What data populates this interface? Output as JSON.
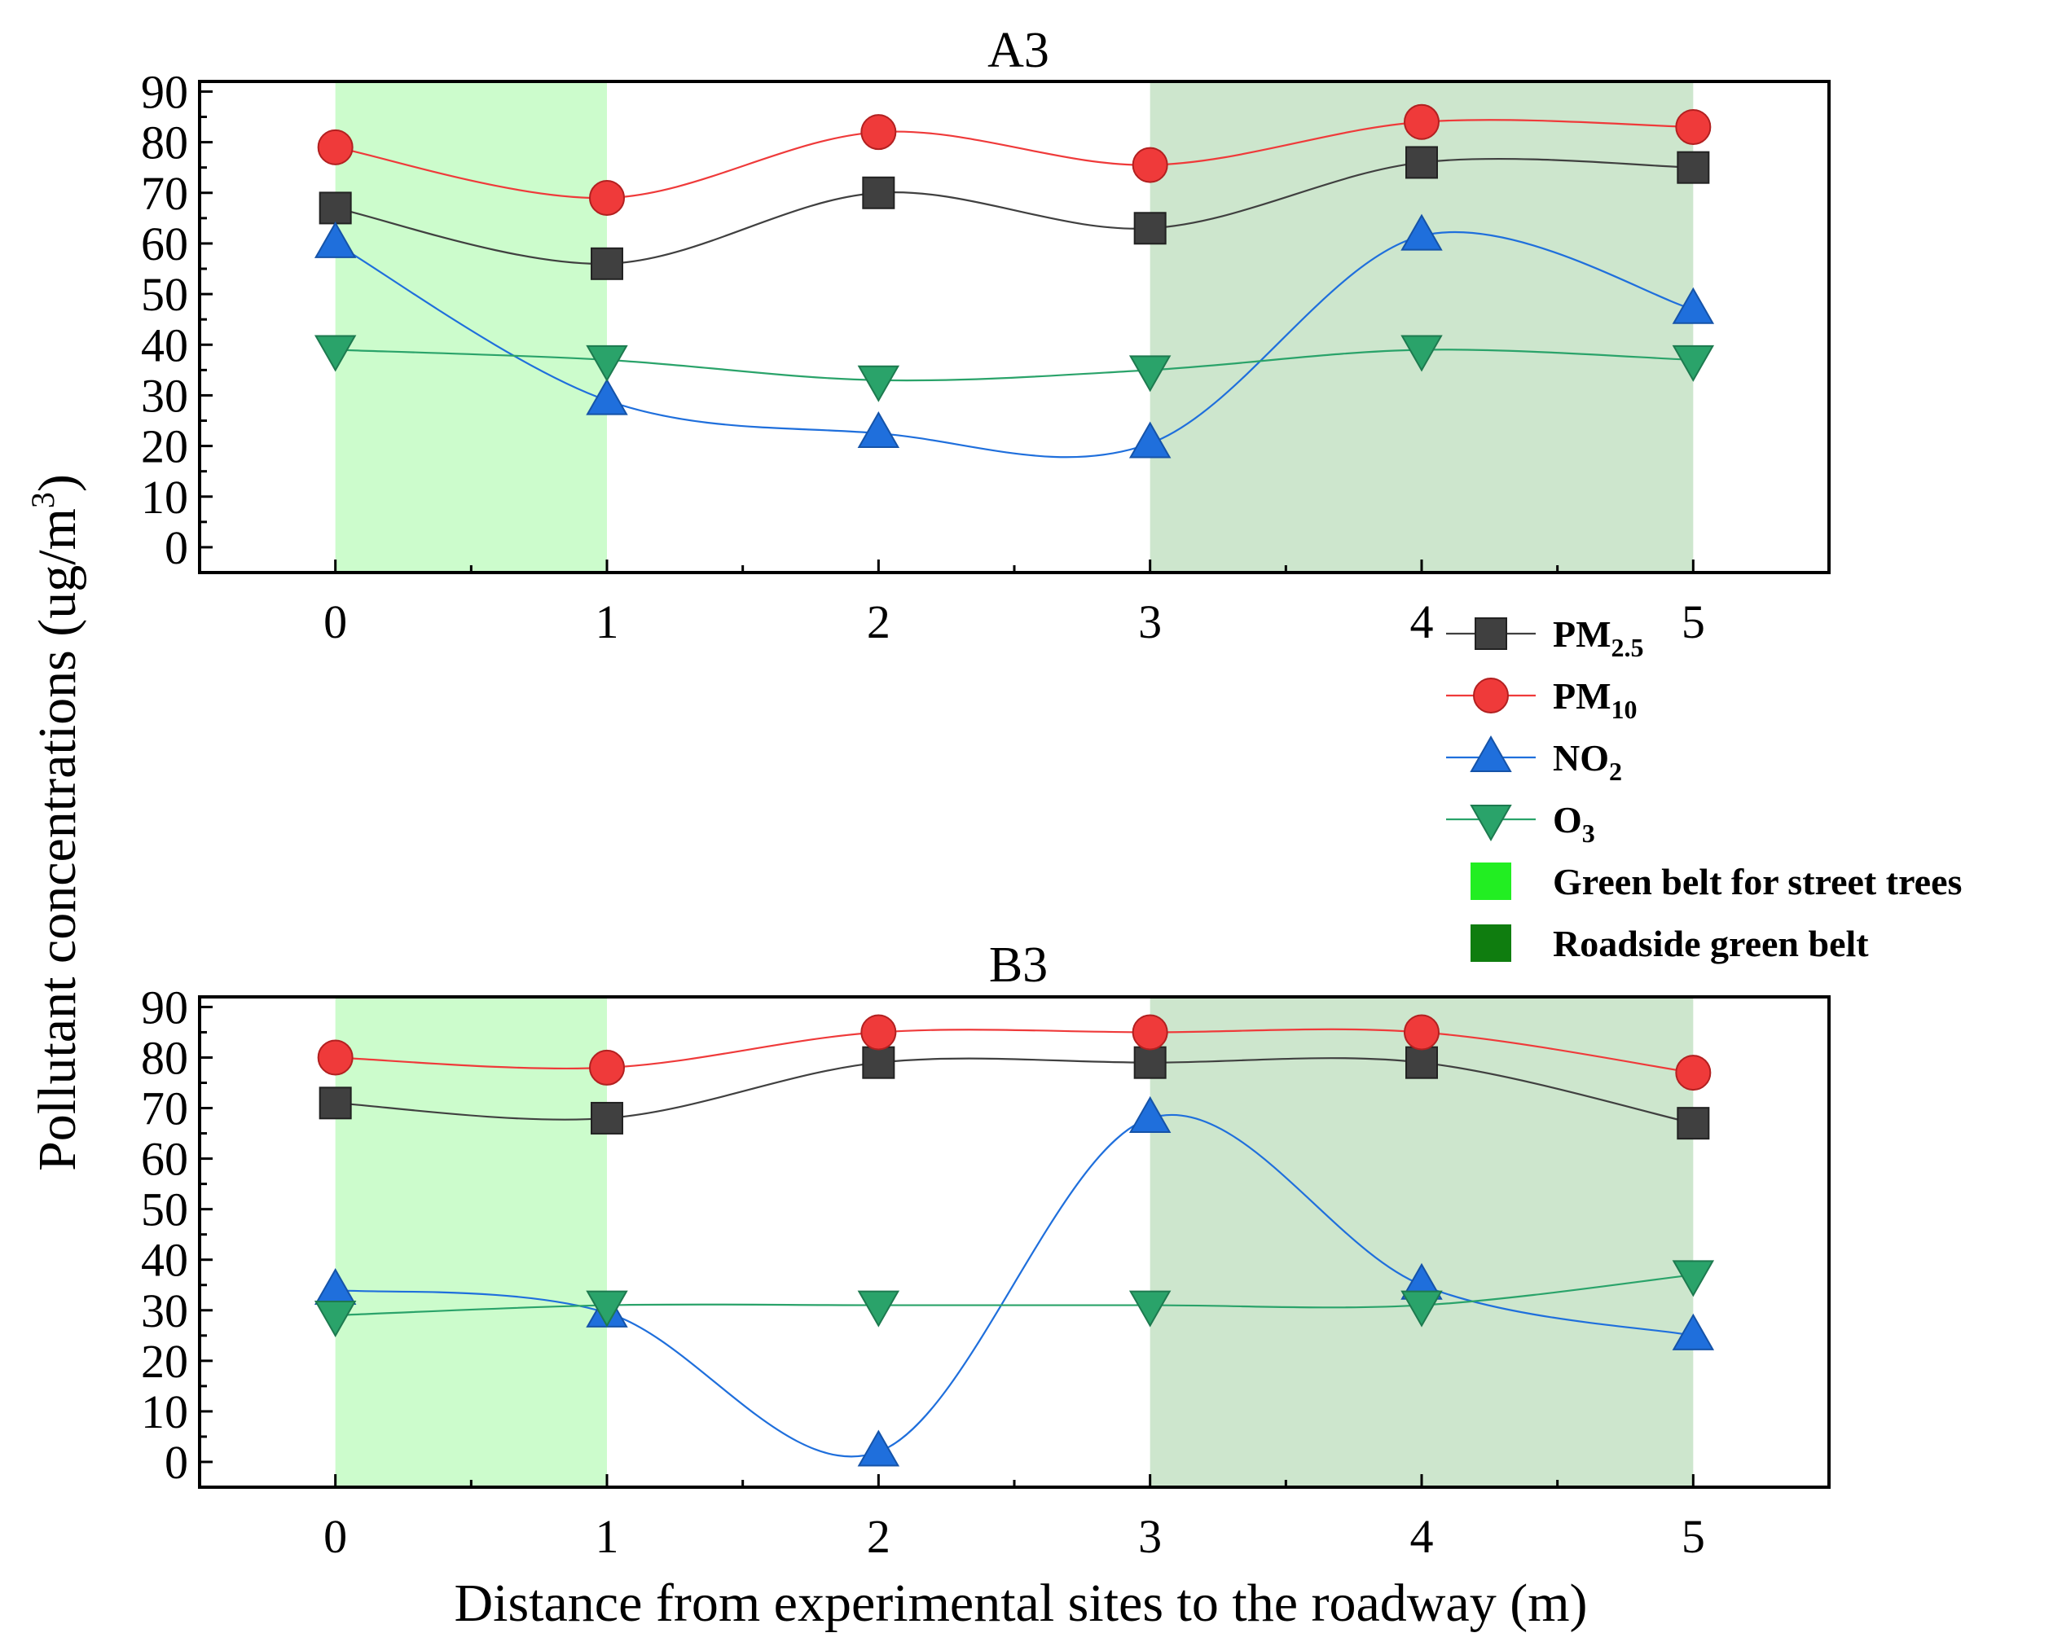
{
  "figure": {
    "xlabel": "Distance from experimental sites to the roadway (m)",
    "ylabel_main": "Pollutant concentrations (ug/m",
    "ylabel_sup": "3",
    "ylabel_close": ")"
  },
  "legend": {
    "items": [
      {
        "key": "pm25",
        "base": "PM",
        "sub": "2.5",
        "marker": "square",
        "color": "#404040"
      },
      {
        "key": "pm10",
        "base": "PM",
        "sub": "10",
        "marker": "circle",
        "color": "#ef3a3a"
      },
      {
        "key": "no2",
        "base": "NO",
        "sub": "2",
        "marker": "triangle-up",
        "color": "#1f6fdc"
      },
      {
        "key": "o3",
        "base": "O",
        "sub": "3",
        "marker": "triangle-down",
        "color": "#2aa36a"
      },
      {
        "key": "street",
        "base": "Green belt for street trees",
        "sub": "",
        "marker": "rect",
        "color": "#22ee22"
      },
      {
        "key": "roadside",
        "base": "Roadside green belt",
        "sub": "",
        "marker": "rect",
        "color": "#0f7d0f"
      }
    ]
  },
  "chart_data": [
    {
      "type": "line",
      "title": "A3",
      "xlabel": "Distance from experimental sites to the roadway (m)",
      "ylabel": "Pollutant concentrations (ug/m3)",
      "x": [
        0,
        1,
        2,
        3,
        4,
        5
      ],
      "xlim": [
        -0.5,
        5.5
      ],
      "ylim": [
        -5,
        92
      ],
      "xticks": [
        "0",
        "1",
        "2",
        "3",
        "4",
        "5"
      ],
      "yticks": [
        "0",
        "10",
        "20",
        "30",
        "40",
        "50",
        "60",
        "70",
        "80",
        "90"
      ],
      "bands": [
        {
          "name": "Green belt for street trees",
          "from": 0,
          "to": 1,
          "color": "#ccfccc"
        },
        {
          "name": "Roadside green belt",
          "from": 3,
          "to": 5,
          "color": "#cde6cd"
        }
      ],
      "series": [
        {
          "name": "PM2.5",
          "values": [
            67,
            56,
            70,
            63,
            76,
            75
          ],
          "color": "#404040",
          "marker": "square"
        },
        {
          "name": "PM10",
          "values": [
            79,
            69,
            82,
            75.5,
            84,
            83
          ],
          "color": "#ef3a3a",
          "marker": "circle"
        },
        {
          "name": "NO2",
          "values": [
            60,
            29,
            22.5,
            20.5,
            61.5,
            47
          ],
          "color": "#1f6fdc",
          "marker": "triangle-up"
        },
        {
          "name": "O3",
          "values": [
            39,
            37,
            33,
            35,
            39,
            37
          ],
          "color": "#2aa36a",
          "marker": "triangle-down"
        }
      ]
    },
    {
      "type": "line",
      "title": "B3",
      "xlabel": "Distance from experimental sites to the roadway (m)",
      "ylabel": "Pollutant concentrations (ug/m3)",
      "x": [
        0,
        1,
        2,
        3,
        4,
        5
      ],
      "xlim": [
        -0.5,
        5.5
      ],
      "ylim": [
        -5,
        92
      ],
      "xticks": [
        "0",
        "1",
        "2",
        "3",
        "4",
        "5"
      ],
      "yticks": [
        "0",
        "10",
        "20",
        "30",
        "40",
        "50",
        "60",
        "70",
        "80",
        "90"
      ],
      "bands": [
        {
          "name": "Green belt for street trees",
          "from": 0,
          "to": 1,
          "color": "#ccfccc"
        },
        {
          "name": "Roadside green belt",
          "from": 3,
          "to": 5,
          "color": "#cde6cd"
        }
      ],
      "series": [
        {
          "name": "PM2.5",
          "values": [
            71,
            68,
            79,
            79,
            79,
            67
          ],
          "color": "#404040",
          "marker": "square"
        },
        {
          "name": "PM10",
          "values": [
            80,
            78,
            85,
            85,
            85,
            77
          ],
          "color": "#ef3a3a",
          "marker": "circle"
        },
        {
          "name": "NO2",
          "values": [
            34,
            29.5,
            2,
            68,
            35,
            25
          ],
          "color": "#1f6fdc",
          "marker": "triangle-up"
        },
        {
          "name": "O3",
          "values": [
            29,
            31,
            31,
            31,
            31,
            37
          ],
          "color": "#2aa36a",
          "marker": "triangle-down"
        }
      ]
    }
  ]
}
